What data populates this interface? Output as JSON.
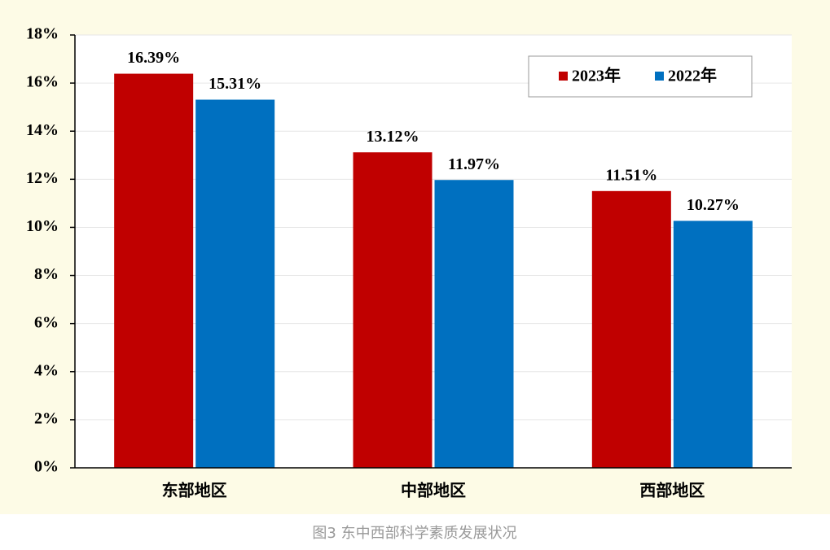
{
  "chart_data": {
    "type": "bar",
    "caption": "图3 东中西部科学素质发展状况",
    "categories": [
      "东部地区",
      "中部地区",
      "西部地区"
    ],
    "series": [
      {
        "name": "2023年",
        "color": "#c00000",
        "values": [
          16.39,
          13.12,
          11.51
        ],
        "value_labels": [
          "16.39%",
          "13.12%",
          "11.51%"
        ]
      },
      {
        "name": "2022年",
        "color": "#0070c0",
        "values": [
          15.31,
          11.97,
          10.27
        ],
        "value_labels": [
          "15.31%",
          "11.97%",
          "10.27%"
        ]
      }
    ],
    "ylim": [
      0,
      18
    ],
    "yticks": [
      {
        "value": 0,
        "label": "0%"
      },
      {
        "value": 2,
        "label": "2%"
      },
      {
        "value": 4,
        "label": "4%"
      },
      {
        "value": 6,
        "label": "6%"
      },
      {
        "value": 8,
        "label": "8%"
      },
      {
        "value": 10,
        "label": "10%"
      },
      {
        "value": 12,
        "label": "12%"
      },
      {
        "value": 14,
        "label": "14%"
      },
      {
        "value": 16,
        "label": "16%"
      },
      {
        "value": 18,
        "label": "18%"
      }
    ],
    "grid": true,
    "legend": "top-right"
  }
}
